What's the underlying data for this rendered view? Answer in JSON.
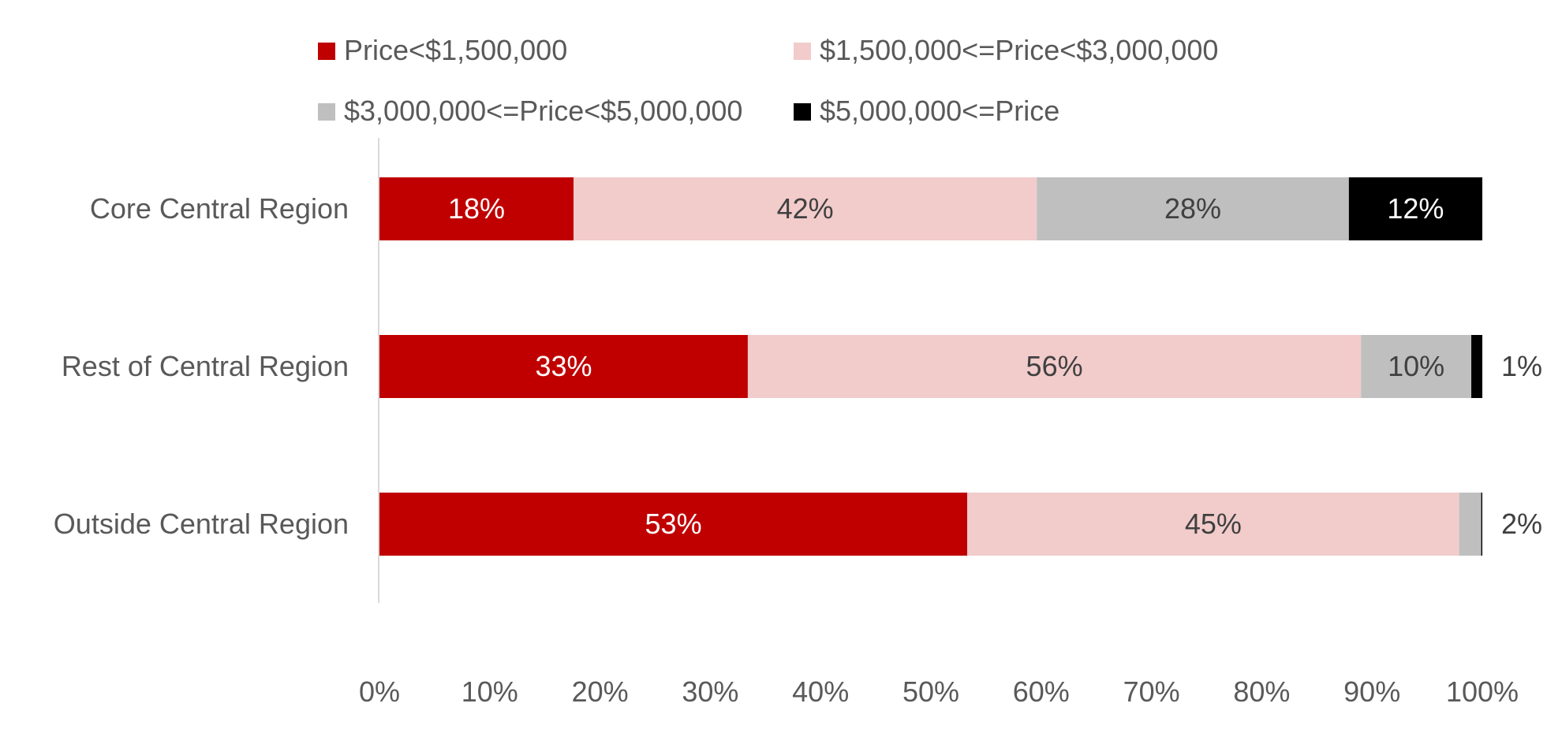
{
  "chart_data": {
    "type": "bar",
    "orientation": "horizontal",
    "stacked": true,
    "categories": [
      "Core Central Region",
      "Rest of Central Region",
      "Outside Central Region"
    ],
    "series": [
      {
        "name": "Price<$1,500,000",
        "color": "#C00000",
        "label_color": "#ffffff",
        "values": [
          17.6,
          33.4,
          53.3
        ],
        "labels": [
          "18%",
          "33%",
          "53%"
        ]
      },
      {
        "name": "$1,500,000<=Price<$3,000,000",
        "color": "#F2CBCB",
        "label_color": "#404040",
        "values": [
          42.0,
          55.6,
          44.6
        ],
        "labels": [
          "42%",
          "56%",
          "45%"
        ]
      },
      {
        "name": "$3,000,000<=Price<$5,000,000",
        "color": "#BFBFBF",
        "label_color": "#404040",
        "values": [
          28.3,
          10.0,
          2.0
        ],
        "labels": [
          "28%",
          "10%",
          "2%"
        ]
      },
      {
        "name": "$5,000,000<=Price",
        "color": "#000000",
        "label_color": "#ffffff",
        "values": [
          12.1,
          1.0,
          0.1
        ],
        "labels": [
          "12%",
          "1%",
          ""
        ]
      }
    ],
    "xlim": [
      0,
      100
    ],
    "x_ticks": [
      "0%",
      "10%",
      "20%",
      "30%",
      "40%",
      "50%",
      "60%",
      "70%",
      "80%",
      "90%",
      "100%"
    ],
    "xlabel": "",
    "ylabel": "",
    "legend_position": "top",
    "grid": false
  }
}
